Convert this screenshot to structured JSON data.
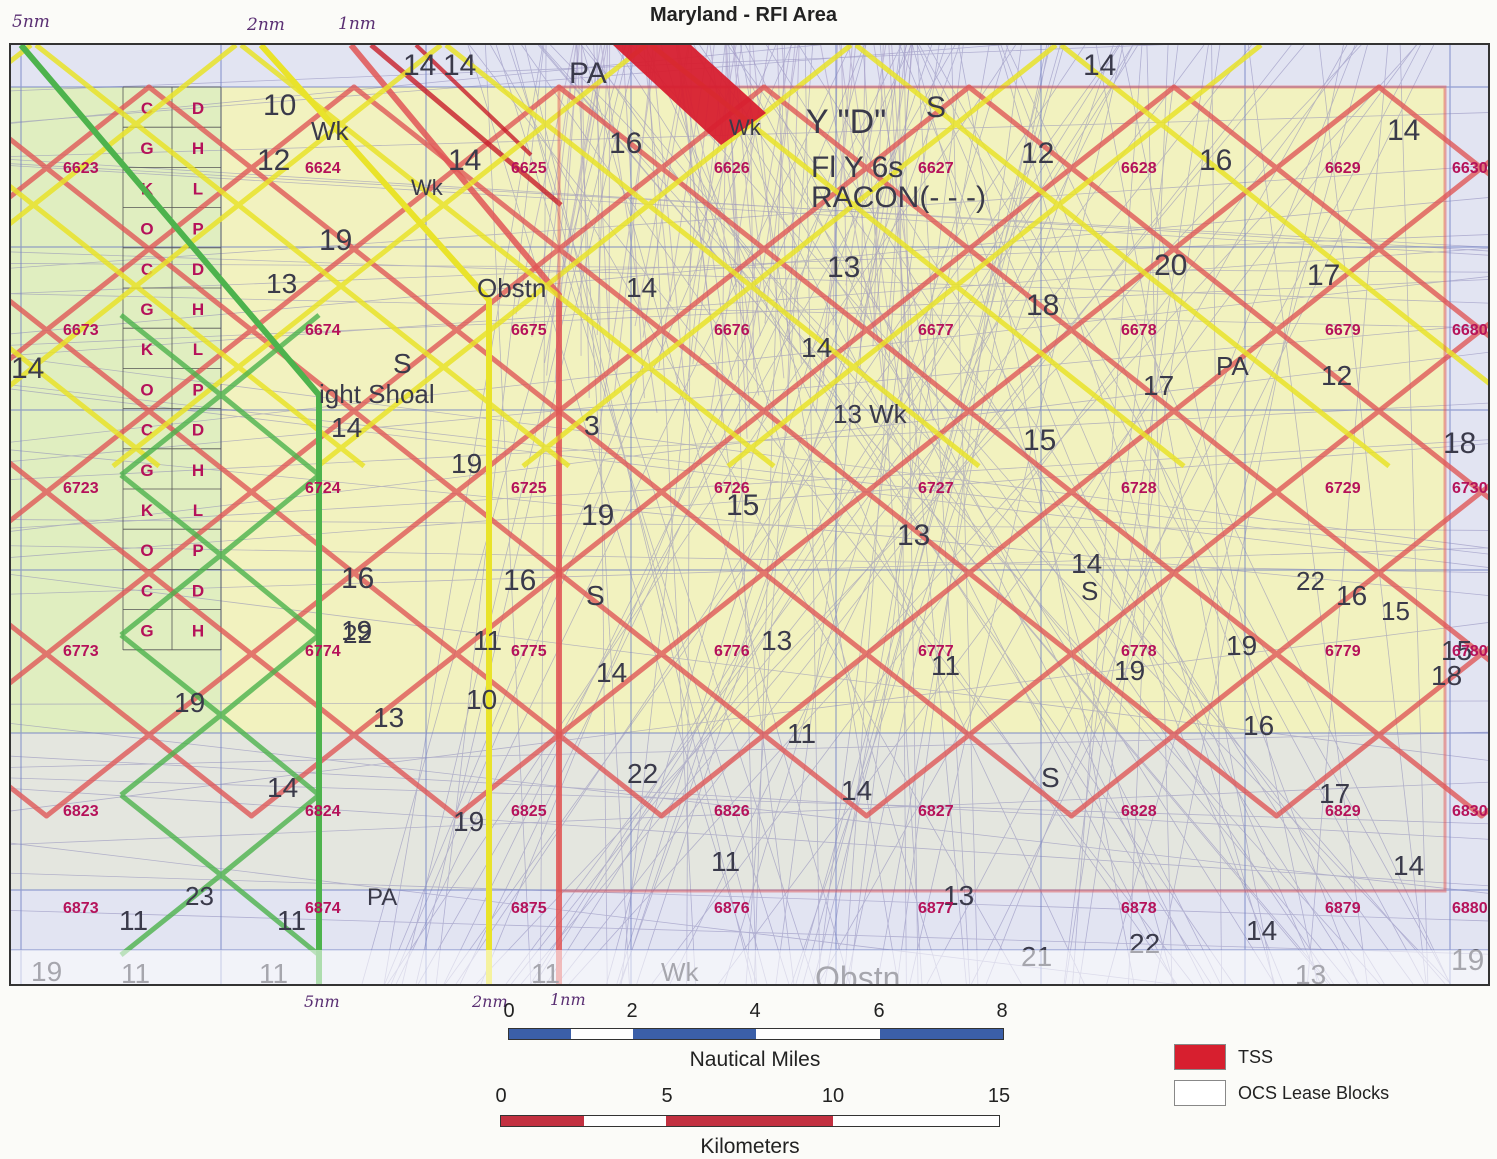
{
  "title": "Maryland - RFI Area",
  "annotations_top": [
    "5nm",
    "2nm",
    "1nm"
  ],
  "annotations_bottom": [
    "5nm",
    "2nm",
    "1nm"
  ],
  "block_rows": [
    [
      "6623",
      "6624",
      "6625",
      "6626",
      "6627",
      "6628",
      "6629",
      "6630"
    ],
    [
      "6673",
      "6674",
      "6675",
      "6676",
      "6677",
      "6678",
      "6679",
      "6680"
    ],
    [
      "6723",
      "6724",
      "6725",
      "6726",
      "6727",
      "6728",
      "6729",
      "6730"
    ],
    [
      "6773",
      "6774",
      "6775",
      "6776",
      "6777",
      "6778",
      "6779",
      "6780"
    ],
    [
      "6823",
      "6824",
      "6825",
      "6826",
      "6827",
      "6828",
      "6829",
      "6830"
    ],
    [
      "6873",
      "6874",
      "6875",
      "6876",
      "6877",
      "6878",
      "6879",
      "6880"
    ]
  ],
  "aliquots": {
    "left": [
      "C",
      "G",
      "K",
      "O",
      "C",
      "G",
      "K",
      "O",
      "C",
      "G",
      "K",
      "O",
      "C",
      "G"
    ],
    "right": [
      "D",
      "H",
      "L",
      "P",
      "D",
      "H",
      "L",
      "P",
      "D",
      "H",
      "L",
      "P",
      "D",
      "H"
    ]
  },
  "chart_text": [
    {
      "t": "14",
      "s": 30
    },
    {
      "t": "14",
      "s": 30
    },
    {
      "t": "14",
      "s": 30
    },
    {
      "t": "PA",
      "s": 30
    },
    {
      "t": "10",
      "s": 30
    },
    {
      "t": "Wk",
      "s": 26
    },
    {
      "t": "12",
      "s": 30
    },
    {
      "t": "Wk",
      "s": 22
    },
    {
      "t": "14",
      "s": 30
    },
    {
      "t": "16",
      "s": 30
    },
    {
      "t": "Wk",
      "s": 22
    },
    {
      "t": "Y \"D\"",
      "s": 34
    },
    {
      "t": "Fl Y 6s",
      "s": 30
    },
    {
      "t": "RACON(- - -)",
      "s": 30
    },
    {
      "t": "S",
      "s": 30
    },
    {
      "t": "12",
      "s": 30
    },
    {
      "t": "16",
      "s": 30
    },
    {
      "t": "14",
      "s": 30
    },
    {
      "t": "19",
      "s": 30
    },
    {
      "t": "13",
      "s": 28
    },
    {
      "t": "Obstn",
      "s": 26
    },
    {
      "t": "14",
      "s": 28
    },
    {
      "t": "13",
      "s": 30
    },
    {
      "t": "20",
      "s": 30
    },
    {
      "t": "17",
      "s": 30
    },
    {
      "t": "18",
      "s": 30
    },
    {
      "t": "14",
      "s": 30
    },
    {
      "t": "ight Shoal",
      "s": 26
    },
    {
      "t": "S",
      "s": 28
    },
    {
      "t": "14",
      "s": 28
    },
    {
      "t": "17",
      "s": 28
    },
    {
      "t": "PA",
      "s": 26
    },
    {
      "t": "12",
      "s": 28
    },
    {
      "t": "14",
      "s": 28
    },
    {
      "t": "19",
      "s": 28
    },
    {
      "t": "3",
      "s": 28
    },
    {
      "t": "13 Wk",
      "s": 26
    },
    {
      "t": "15",
      "s": 30
    },
    {
      "t": "18",
      "s": 30
    },
    {
      "t": "19",
      "s": 30
    },
    {
      "t": "16",
      "s": 30
    },
    {
      "t": "15",
      "s": 30
    },
    {
      "t": "13",
      "s": 30
    },
    {
      "t": "16",
      "s": 28
    },
    {
      "t": "16",
      "s": 30
    },
    {
      "t": "19",
      "s": 28
    },
    {
      "t": "S",
      "s": 28
    },
    {
      "t": "13",
      "s": 28
    },
    {
      "t": "14",
      "s": 28
    },
    {
      "t": "S",
      "s": 26
    },
    {
      "t": "22",
      "s": 26
    },
    {
      "t": "15",
      "s": 26
    },
    {
      "t": "22",
      "s": 26
    },
    {
      "t": "11",
      "s": 28
    },
    {
      "t": "14",
      "s": 28
    },
    {
      "t": "15",
      "s": 28
    },
    {
      "t": "11",
      "s": 28
    },
    {
      "t": "19",
      "s": 28
    },
    {
      "t": "19",
      "s": 28
    },
    {
      "t": "18",
      "s": 28
    },
    {
      "t": "19",
      "s": 28
    },
    {
      "t": "13",
      "s": 28
    },
    {
      "t": "10",
      "s": 28
    },
    {
      "t": "11",
      "s": 28
    },
    {
      "t": "16",
      "s": 28
    },
    {
      "t": "22",
      "s": 28
    },
    {
      "t": "14",
      "s": 28
    },
    {
      "t": "14",
      "s": 28
    },
    {
      "t": "S",
      "s": 28
    },
    {
      "t": "17",
      "s": 28
    },
    {
      "t": "19",
      "s": 28
    },
    {
      "t": "11",
      "s": 28
    },
    {
      "t": "14",
      "s": 28
    },
    {
      "t": "23",
      "s": 26
    },
    {
      "t": "11",
      "s": 28
    },
    {
      "t": "PA",
      "s": 24
    },
    {
      "t": "11",
      "s": 28
    },
    {
      "t": "13",
      "s": 28
    },
    {
      "t": "14",
      "s": 28
    },
    {
      "t": "21",
      "s": 28
    },
    {
      "t": "22",
      "s": 28
    },
    {
      "t": "19",
      "s": 28
    },
    {
      "t": "11",
      "s": 28
    },
    {
      "t": "11",
      "s": 28
    },
    {
      "t": "11",
      "s": 28
    },
    {
      "t": "Wk",
      "s": 26
    },
    {
      "t": "Obstn",
      "s": 32
    },
    {
      "t": "13",
      "s": 28
    },
    {
      "t": "19",
      "s": 30
    },
    {
      "t": "21",
      "s": 28
    }
  ],
  "colors": {
    "red_buffer": "#e05555",
    "yellow_buffer": "#e9e32a",
    "green_buffer": "#4db34d",
    "block_label": "#b5125a",
    "tss": "#d71f2f",
    "chart_water": "#e2e4f2",
    "chart_shoal": "#f2f2bf"
  },
  "scale_nautical": {
    "ticks": [
      "0",
      "2",
      "4",
      "6",
      "8"
    ],
    "title": "Nautical Miles"
  },
  "scale_kilometers": {
    "ticks": [
      "0",
      "5",
      "10",
      "15"
    ],
    "title": "Kilometers"
  },
  "legend": [
    {
      "label": "TSS",
      "color": "#d71f2f"
    },
    {
      "label": "OCS Lease Blocks",
      "color": "#ffffff"
    }
  ]
}
